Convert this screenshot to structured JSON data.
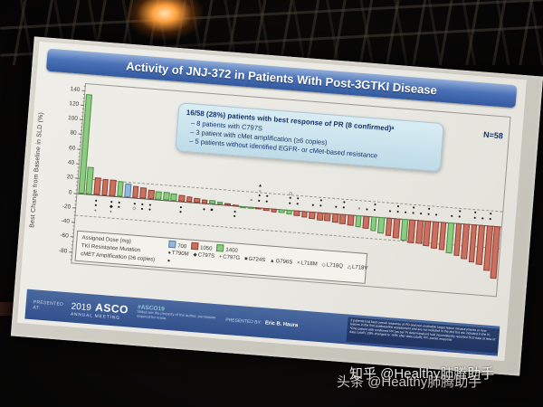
{
  "photo": {
    "watermarks": [
      "知乎 @Healthy肺腾助手",
      "头条 @Healthy肺腾助手"
    ]
  },
  "slide": {
    "title": "Activity of JNJ-372 in Patients With Post-3GTKI Disease",
    "n_label": "N=58",
    "annotation": {
      "headline": "16/58 (28%) patients with best response of PR (8 confirmed)ᵃ",
      "bullets": [
        "–  8 patients with C797S",
        "–  3 patient with cMet amplification (≥6 copies)",
        "–  5 patients without identified EGFR- or cMet-based resistance"
      ]
    },
    "legend": {
      "dose_label": "Assigned Dose (mg)",
      "doses": [
        {
          "label": "700",
          "color": "#93b7d9",
          "border": "#5d82a8"
        },
        {
          "label": "1050",
          "color": "#cb6f5f",
          "border": "#8f4438"
        },
        {
          "label": "1400",
          "color": "#8ecb82",
          "border": "#4e8f46"
        }
      ],
      "mutation_label": "TKI Resistance Mutation",
      "mutations": [
        {
          "symbol": "●",
          "label": "T790M"
        },
        {
          "symbol": "◆",
          "label": "C797S"
        },
        {
          "symbol": "+",
          "label": "C797G"
        },
        {
          "symbol": "■",
          "label": "G724S"
        },
        {
          "symbol": "▲",
          "label": "G796S"
        },
        {
          "symbol": "×",
          "label": "L718M"
        },
        {
          "symbol": "◇",
          "label": "L718Q"
        },
        {
          "symbol": "△",
          "label": "L718V"
        }
      ],
      "cmet_label": "cMET Amplification (≥6 copies)",
      "cmet_symbol": "●"
    },
    "footer": {
      "presented_at_label": "PRESENTED AT:",
      "logo_year": "2019",
      "logo_name": "ASCO",
      "logo_sub": "ANNUAL MEETING",
      "hashtag": "#ASCO19",
      "hashtag_sub": "Slides are the property of the author, permission required for reuse.",
      "presented_by_label": "PRESENTED BY:",
      "presenter": "Eric B. Haura",
      "footnote": "3 patients had best overall response of PD and non-evaluable target lesion measurements or new lesions in the first postbaseline assessment and are not included in the plot but are included in the N; ᵃOne patient with confirmed PR (as per PI determination) had inconsistently reported SLD data at time of data cutoff (-29% changed to -34% after data cutoff); PR: partial response",
      "accent_blue": "#32508c"
    },
    "chart_data": {
      "type": "bar",
      "title": "Activity of JNJ-372 in Patients With Post-3GTKI Disease",
      "ylabel": "Best Change from Baseline in SLD (%)",
      "ylim": [
        -95,
        148
      ],
      "yticks": [
        140,
        120,
        100,
        80,
        60,
        40,
        20,
        0,
        -20,
        -40,
        -60,
        -80
      ],
      "reference_lines": [
        20,
        -30
      ],
      "grid": false,
      "legend_position": "bottom-left",
      "bars": [
        {
          "value": 135,
          "dose": "1400",
          "markers": []
        },
        {
          "value": 36,
          "dose": "1400",
          "markers": []
        },
        {
          "value": 23,
          "dose": "1050",
          "markers": [
            "●",
            "●",
            "+"
          ]
        },
        {
          "value": 22,
          "dose": "1050",
          "markers": []
        },
        {
          "value": 21,
          "dose": "1050",
          "markers": [
            "●",
            "◆",
            "+"
          ]
        },
        {
          "value": 20,
          "dose": "1400",
          "markers": [
            "●",
            "●"
          ]
        },
        {
          "value": 18,
          "dose": "700",
          "markers": []
        },
        {
          "value": 16,
          "dose": "1050",
          "markers": [
            "●",
            "◇"
          ]
        },
        {
          "value": 14,
          "dose": "1050",
          "markers": [
            "●",
            "●"
          ]
        },
        {
          "value": 12,
          "dose": "1050",
          "markers": [
            "●",
            "●"
          ]
        },
        {
          "value": 11,
          "dose": "1400",
          "markers": []
        },
        {
          "value": 10,
          "dose": "1400",
          "markers": []
        },
        {
          "value": 9,
          "dose": "1400",
          "markers": []
        },
        {
          "value": 8,
          "dose": "1050",
          "markers": [
            "●",
            "●"
          ]
        },
        {
          "value": 7,
          "dose": "1050",
          "markers": []
        },
        {
          "value": 6,
          "dose": "1050",
          "markers": []
        },
        {
          "value": 5,
          "dose": "1050",
          "markers": [
            "●"
          ]
        },
        {
          "value": 4,
          "dose": "1400",
          "markers": [
            "■"
          ]
        },
        {
          "value": 3,
          "dose": "1400",
          "markers": []
        },
        {
          "value": 2,
          "dose": "1050",
          "markers": []
        },
        {
          "value": 1,
          "dose": "1050",
          "markers": [
            "●",
            "●"
          ]
        },
        {
          "value": -1,
          "dose": "1400",
          "markers": []
        },
        {
          "value": -2,
          "dose": "1400",
          "markers": [
            "×"
          ]
        },
        {
          "value": -3,
          "dose": "1050",
          "markers": [
            "▲",
            "○",
            "●",
            "●"
          ]
        },
        {
          "value": -4,
          "dose": "1050",
          "markers": [
            "●",
            "●"
          ]
        },
        {
          "value": -5,
          "dose": "1050",
          "markers": []
        },
        {
          "value": -6,
          "dose": "1400",
          "markers": []
        },
        {
          "value": -7,
          "dose": "1400",
          "markers": [
            "◇",
            "●",
            "●"
          ]
        },
        {
          "value": -8,
          "dose": "1050",
          "markers": [
            "●",
            "●"
          ]
        },
        {
          "value": -9,
          "dose": "1050",
          "markers": []
        },
        {
          "value": -10,
          "dose": "1050",
          "markers": [
            "●"
          ]
        },
        {
          "value": -11,
          "dose": "1050",
          "markers": [
            "●",
            "●"
          ]
        },
        {
          "value": -12,
          "dose": "1050",
          "markers": []
        },
        {
          "value": -13,
          "dose": "1050",
          "markers": [
            "●"
          ]
        },
        {
          "value": -14,
          "dose": "1050",
          "markers": [
            "●",
            "●"
          ]
        },
        {
          "value": -15,
          "dose": "1050",
          "markers": []
        },
        {
          "value": -16,
          "dose": "1400",
          "markers": [
            "×"
          ]
        },
        {
          "value": -18,
          "dose": "1050",
          "markers": [
            "●"
          ]
        },
        {
          "value": -20,
          "dose": "1400",
          "markers": [
            "●",
            "●"
          ]
        },
        {
          "value": -23,
          "dose": "1400",
          "markers": []
        },
        {
          "value": -25,
          "dose": "1050",
          "markers": [
            "●"
          ]
        },
        {
          "value": -27,
          "dose": "1050",
          "markers": [
            "●",
            "●"
          ]
        },
        {
          "value": -30,
          "dose": "1400",
          "markers": [
            "●"
          ]
        },
        {
          "value": -32,
          "dose": "1050",
          "markers": [
            "●",
            "●"
          ]
        },
        {
          "value": -33,
          "dose": "1050",
          "markers": [
            "●"
          ]
        },
        {
          "value": -35,
          "dose": "1050",
          "markers": [
            "●",
            "●"
          ]
        },
        {
          "value": -37,
          "dose": "1050",
          "markers": [
            "●"
          ]
        },
        {
          "value": -39,
          "dose": "1050",
          "markers": []
        },
        {
          "value": -42,
          "dose": "1400",
          "markers": [
            "●"
          ]
        },
        {
          "value": -45,
          "dose": "1050",
          "markers": [
            "●",
            "●"
          ]
        },
        {
          "value": -48,
          "dose": "1050",
          "markers": []
        },
        {
          "value": -52,
          "dose": "1050",
          "markers": [
            "●",
            "●"
          ]
        },
        {
          "value": -55,
          "dose": "1050",
          "markers": [
            "●"
          ]
        },
        {
          "value": -62,
          "dose": "1050",
          "markers": [
            "●",
            "●"
          ]
        },
        {
          "value": -72,
          "dose": "1050",
          "markers": []
        }
      ]
    }
  }
}
